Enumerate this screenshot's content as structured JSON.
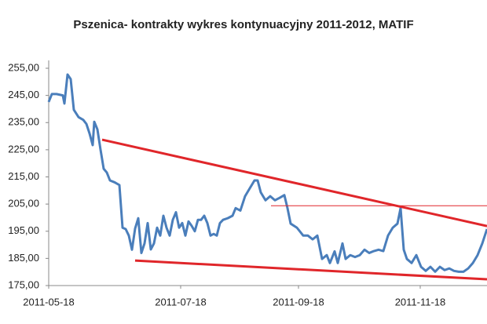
{
  "chart_data": {
    "type": "line",
    "title": "Pszenica- kontrakty wykres kontynuacyjny 2011-2012, MATIF",
    "xlim": [
      0,
      558
    ],
    "xticks": [
      {
        "value": 0,
        "label": "2011-05-18"
      },
      {
        "value": 168,
        "label": "2011-07-18"
      },
      {
        "value": 318,
        "label": "2011-09-18"
      },
      {
        "value": 473,
        "label": "2011-11-18"
      }
    ],
    "ylim": [
      175,
      255
    ],
    "yticks": [
      {
        "value": 175,
        "label": "175,00"
      },
      {
        "value": 185,
        "label": "185,00"
      },
      {
        "value": 195,
        "label": "195,00"
      },
      {
        "value": 205,
        "label": "205,00"
      },
      {
        "value": 215,
        "label": "215,00"
      },
      {
        "value": 225,
        "label": "225,00"
      },
      {
        "value": 235,
        "label": "235,00"
      },
      {
        "value": 245,
        "label": "245,00"
      },
      {
        "value": 255,
        "label": "255,00"
      }
    ],
    "grid": false,
    "series": [
      {
        "color": "#4a7ebb",
        "width": 3,
        "x": [
          0,
          4,
          10,
          18,
          20,
          24,
          28,
          32,
          38,
          44,
          48,
          52,
          56,
          58,
          62,
          66,
          70,
          74,
          78,
          84,
          90,
          94,
          98,
          102,
          106,
          110,
          114,
          118,
          122,
          126,
          130,
          134,
          138,
          142,
          146,
          150,
          154,
          158,
          162,
          166,
          170,
          174,
          178,
          182,
          186,
          190,
          194,
          198,
          202,
          206,
          210,
          214,
          218,
          222,
          228,
          234,
          238,
          244,
          250,
          256,
          262,
          266,
          270,
          276,
          282,
          288,
          294,
          300,
          304,
          308,
          316,
          324,
          330,
          336,
          342,
          348,
          354,
          358,
          364,
          368,
          374,
          378,
          384,
          390,
          396,
          402,
          408,
          414,
          420,
          426,
          432,
          438,
          444,
          448,
          452,
          456,
          462,
          468,
          474,
          480,
          486,
          492,
          498,
          504,
          510,
          516,
          522,
          528,
          534,
          540,
          546,
          552,
          558
        ],
        "values": [
          242.6,
          245.5,
          245.5,
          245,
          242,
          252.7,
          251,
          239.7,
          237,
          236,
          234.5,
          231,
          226.7,
          235.3,
          232.5,
          225,
          218,
          216.6,
          213.7,
          213,
          212,
          196.3,
          195.8,
          193.4,
          188.2,
          196,
          199.8,
          187,
          190.5,
          198,
          188.3,
          190.5,
          196.3,
          193.4,
          200.7,
          196.3,
          193.4,
          199.2,
          202,
          196.3,
          198,
          193.4,
          198.6,
          197,
          195,
          199.2,
          199.2,
          200.7,
          198,
          193.4,
          194,
          193.4,
          198,
          199.2,
          199.8,
          200.7,
          203.5,
          202.6,
          207.9,
          210.8,
          213.7,
          213.7,
          209.3,
          206.4,
          207.9,
          206.4,
          207.3,
          208.3,
          203.5,
          197.8,
          196.3,
          193.4,
          193.4,
          192,
          193.4,
          184.8,
          186.2,
          183.3,
          187.6,
          183.3,
          190.5,
          184.8,
          186.2,
          185.5,
          186.2,
          188.2,
          187,
          187.7,
          188.2,
          187.7,
          193.4,
          196.3,
          197.8,
          203.5,
          188.2,
          184.8,
          183.3,
          186.2,
          181.9,
          180.4,
          181.9,
          180.1,
          181.9,
          180.7,
          181.3,
          180.4,
          180.1,
          180.1,
          181.3,
          183.3,
          186.2,
          190.5,
          195.8
        ]
      },
      {
        "color": "#e0262a",
        "width": 3,
        "x": [
          68,
          558
        ],
        "values": [
          228.7,
          196.9
        ]
      },
      {
        "color": "#e0262a",
        "width": 3,
        "x": [
          110,
          558
        ],
        "values": [
          184.2,
          177.3
        ]
      },
      {
        "color": "#e0262a",
        "width": 1,
        "x": [
          283,
          558
        ],
        "values": [
          204.4,
          204.4
        ]
      }
    ]
  }
}
